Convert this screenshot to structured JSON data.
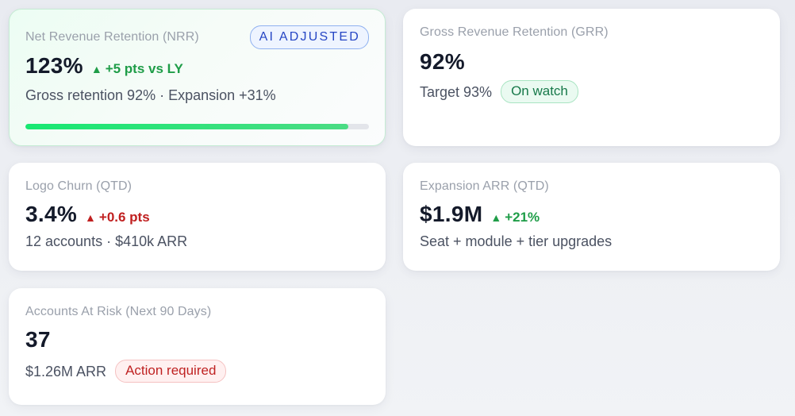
{
  "cards": {
    "nrr": {
      "label": "Net Revenue Retention (NRR)",
      "badge": "AI ADJUSTED",
      "value": "123%",
      "delta_icon": "triangle-up-icon",
      "delta": "+5 pts vs LY",
      "delta_color": "#1f9d48",
      "sub": "Gross retention 92% · Expansion +31%",
      "progress_percent": 94
    },
    "grr": {
      "label": "Gross Revenue Retention (GRR)",
      "value": "92%",
      "sub": "Target 93%",
      "status": "On watch",
      "status_color": "#17794a"
    },
    "logo_churn": {
      "label": "Logo Churn (QTD)",
      "value": "3.4%",
      "delta_icon": "triangle-up-icon",
      "delta": "+0.6 pts",
      "delta_color": "#c02020",
      "sub": "12 accounts · $410k ARR"
    },
    "expansion": {
      "label": "Expansion ARR (QTD)",
      "value": "$1.9M",
      "delta_icon": "triangle-up-icon",
      "delta": "+21%",
      "delta_color": "#1f9d48",
      "sub": "Seat + module + tier upgrades"
    },
    "at_risk": {
      "label": "Accounts At Risk (Next 90 Days)",
      "value": "37",
      "sub": "$1.26M ARR",
      "status": "Action required",
      "status_color": "#bf2222"
    }
  }
}
